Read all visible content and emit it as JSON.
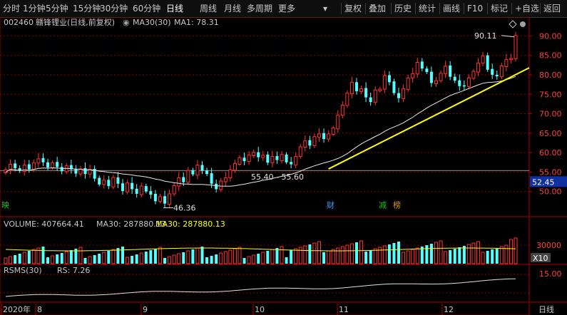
{
  "toolbar": {
    "left_items": [
      "分时",
      "1分钟",
      "5分钟",
      "15分钟",
      "30分钟",
      "60分钟",
      "日线",
      "周线",
      "月线",
      "多周期",
      "更多"
    ],
    "active": "日线",
    "right_items": [
      "复权",
      "叠加",
      "历史",
      "统计",
      "画线",
      "F10",
      "标记",
      "+自选",
      "返回"
    ]
  },
  "header": {
    "code": "002460",
    "name": "赣锋锂业(日线,前复权)",
    "indicator": "MA30(30)",
    "ma_value": "MA1: 78.31"
  },
  "price_axis": {
    "ticks": [
      "90.00",
      "85.00",
      "80.00",
      "75.00",
      "70.00",
      "65.00",
      "60.00",
      "55.00",
      "50.00"
    ],
    "current": "52.45"
  },
  "annotations": {
    "high": "90.11",
    "low": "46.36",
    "range_text": "55.40 - 55.60"
  },
  "event_markers": [
    {
      "text": "映",
      "color": "#20c020"
    },
    {
      "text": "财",
      "color": "#3aa0ff"
    },
    {
      "text": "减",
      "color": "#20c020"
    },
    {
      "text": "榜",
      "color": "#e0a000"
    }
  ],
  "volume_panel": {
    "label": "VOLUME: 407664.41",
    "ma_label": "MA30: 287880.13",
    "ma_label2": "MA30: 287880.13",
    "axis_tick": "30000",
    "unit": "X10"
  },
  "rsms_panel": {
    "label": "RSMS(30)",
    "value": "RS: 7.26",
    "axis_tick": "15.00"
  },
  "time_axis": {
    "labels": [
      "2020年",
      "8",
      "9",
      "10",
      "11",
      "12"
    ],
    "period": "日线"
  },
  "colors": {
    "up": "#ff3232",
    "down": "#54ffff",
    "ma": "#e8e8e8",
    "trend": "#ffff00",
    "vol_ma": "#ffff00",
    "grid": "#8b0000",
    "text_yellow": "#ffff00"
  },
  "chart_data": {
    "type": "candlestick",
    "ylim": [
      45,
      93
    ],
    "closes": [
      55.6,
      57.0,
      56.0,
      55.3,
      56.8,
      55.7,
      57.4,
      58.4,
      57.5,
      56.2,
      57.4,
      56.3,
      55.2,
      56.6,
      55.7,
      54.6,
      55.8,
      54.5,
      55.7,
      53.3,
      51.8,
      52.9,
      51.4,
      53.6,
      52.0,
      50.1,
      52.2,
      50.6,
      49.4,
      51.4,
      50.0,
      49.2,
      47.5,
      48.7,
      46.9,
      49.4,
      51.5,
      53.5,
      52.4,
      55.4,
      54.4,
      56.8,
      55.3,
      54.5,
      52.0,
      50.6,
      52.7,
      53.5,
      55.6,
      57.2,
      58.7,
      57.8,
      59.4,
      60.1,
      58.8,
      59.3,
      57.4,
      59.0,
      58.1,
      59.5,
      57.5,
      57.0,
      59.0,
      61.5,
      63.0,
      61.8,
      64.1,
      64.8,
      63.5,
      64.8,
      66.3,
      69.6,
      72.2,
      75.3,
      78.1,
      75.8,
      76.4,
      74.2,
      73.0,
      76.1,
      76.3,
      79.8,
      78.1,
      75.3,
      74.0,
      76.4,
      79.2,
      80.3,
      83.2,
      81.6,
      80.7,
      77.9,
      78.5,
      80.4,
      82.2,
      79.5,
      78.5,
      77.1,
      77.0,
      79.2,
      80.9,
      83.0,
      84.9,
      81.3,
      80.0,
      79.6,
      82.3,
      83.9,
      84.2,
      90.1
    ],
    "price_line": 55.4
  }
}
